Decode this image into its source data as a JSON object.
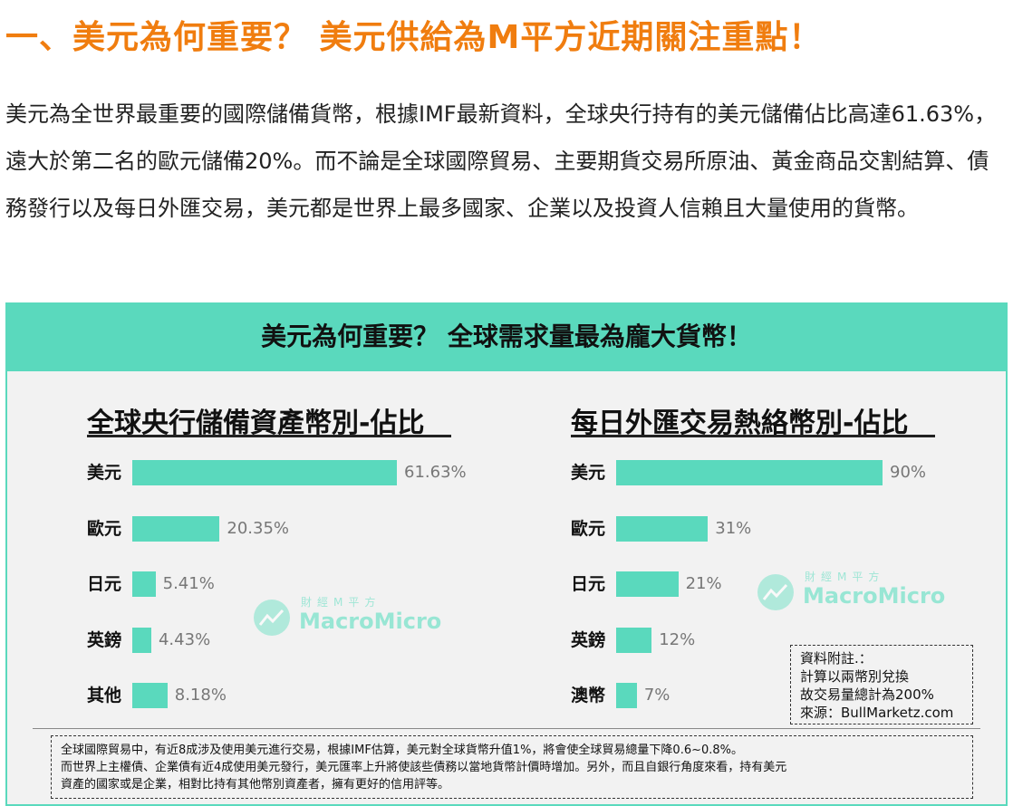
{
  "heading": "一、美元為何重要？ 美元供給為M平方近期關注重點！",
  "intro": "美元為全世界最重要的國際儲備貨幣，根據IMF最新資料，全球央行持有的美元儲備佔比高達61.63%，遠大於第二名的歐元儲備20%。而不論是全球國際貿易、主要期貨交易所原油、黃金商品交割結算、債務發行以及每日外匯交易，美元都是世界上最多國家、企業以及投資人信賴且大量使用的貨幣。",
  "infographic": {
    "title": "美元為何重要？ 全球需求量最為龐大貨幣！",
    "note_lines": [
      "資料附註.：",
      "計算以兩幣別兌換",
      "故交易量總計為200%",
      "來源：BullMarketz.com"
    ],
    "footnote_lines": [
      "全球國際貿易中，有近8成涉及使用美元進行交易，根據IMF估算，美元對全球貨幣升值1%，將會使全球貿易總量下降0.6~0.8%。",
      "而世界上主權債、企業債有近4成使用美元發行，美元匯率上升將使該些債務以當地貨幣計價時增加。另外，而且自銀行角度來看，持有美元",
      "資產的國家或是企業，相對比持有其他幣別資產者，擁有更好的信用評等。"
    ],
    "watermark": {
      "cn": "財經M平方",
      "en": "MacroMicro",
      "icon": "macromicro-logo-icon"
    },
    "bar_color": "#5ad9bd",
    "banner_color": "#5ad9bd"
  },
  "chart_data": [
    {
      "type": "bar",
      "orientation": "horizontal",
      "title": "全球央行儲備資產幣別-佔比",
      "categories": [
        "美元",
        "歐元",
        "日元",
        "英鎊",
        "其他"
      ],
      "values": [
        61.63,
        20.35,
        5.41,
        4.43,
        8.18
      ],
      "value_labels": [
        "61.63%",
        "20.35%",
        "5.41%",
        "4.43%",
        "8.18%"
      ],
      "unit": "%",
      "xlim": [
        0,
        61.63
      ]
    },
    {
      "type": "bar",
      "orientation": "horizontal",
      "title": "每日外匯交易熱絡幣別-佔比",
      "categories": [
        "美元",
        "歐元",
        "日元",
        "英鎊",
        "澳幣"
      ],
      "values": [
        90,
        31,
        21,
        12,
        7
      ],
      "value_labels": [
        "90%",
        "31%",
        "21%",
        "12%",
        "7%"
      ],
      "unit": "%",
      "xlim": [
        0,
        90
      ]
    }
  ]
}
